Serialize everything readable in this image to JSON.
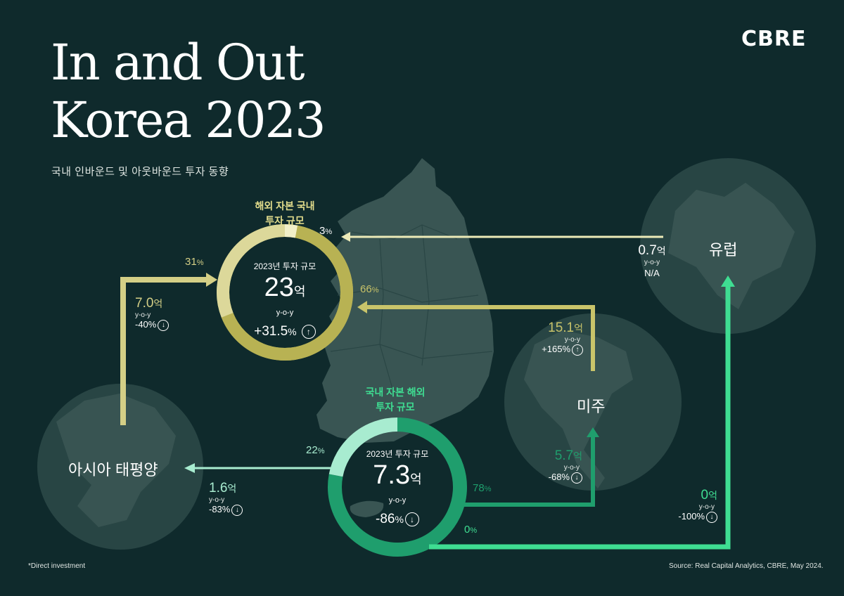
{
  "header": {
    "title_line1": "In and Out",
    "title_line2": "Korea 2023",
    "subtitle": "국내 인바운드 및 아웃바운드 투자 동향",
    "logo": "CBRE"
  },
  "colors": {
    "background": "#0f2a2c",
    "inbound": "#c9c46a",
    "inbound_light": "#e8e6b2",
    "outbound": "#1f9e6d",
    "outbound_light": "#8fe3c2",
    "bright_green": "#3fdd92"
  },
  "inbound": {
    "label_line1": "해외 자본 국내",
    "label_line2": "투자 규모",
    "year_label": "2023년 투자 규모",
    "value": "23",
    "unit": "억",
    "yoy": "y-o-y",
    "change": "+31.5",
    "change_unit": "%",
    "change_icon": "arrow-up-circle",
    "shares": {
      "asia_pacific": 31,
      "americas": 66,
      "europe": 3
    }
  },
  "outbound": {
    "label_line1": "국내 자본 해외",
    "label_line2": "투자 규모",
    "year_label": "2023년 투자 규모",
    "value": "7.3",
    "unit": "억",
    "yoy": "y-o-y",
    "change": "-86",
    "change_unit": "%",
    "change_icon": "arrow-down-circle",
    "shares": {
      "asia_pacific": 22,
      "americas": 78,
      "europe": 0
    }
  },
  "regions": {
    "europe": "유럽",
    "americas": "미주",
    "asia_pacific": "아시아 태평양"
  },
  "flows": {
    "in_asia": {
      "pct": "31",
      "value": "7.0",
      "unit": "억",
      "yoy": "y-o-y",
      "change": "-40%",
      "dir": "down"
    },
    "in_americas": {
      "pct": "66",
      "value": "15.1",
      "unit": "억",
      "yoy": "y-o-y",
      "change": "+165%",
      "dir": "up"
    },
    "in_europe": {
      "pct": "3",
      "value": "0.7",
      "unit": "억",
      "yoy": "y-o-y",
      "change": "N/A"
    },
    "out_asia": {
      "pct": "22",
      "value": "1.6",
      "unit": "억",
      "yoy": "y-o-y",
      "change": "-83%",
      "dir": "down"
    },
    "out_americas": {
      "pct": "78",
      "value": "5.7",
      "unit": "억",
      "yoy": "y-o-y",
      "change": "-68%",
      "dir": "down"
    },
    "out_europe": {
      "pct": "0",
      "value": "0",
      "unit": "억",
      "yoy": "y-o-y",
      "change": "-100%",
      "dir": "down"
    }
  },
  "pct_symbol": "%",
  "footer": {
    "note": "*Direct investment",
    "source": "Source: Real Capital Analytics, CBRE, May 2024."
  }
}
